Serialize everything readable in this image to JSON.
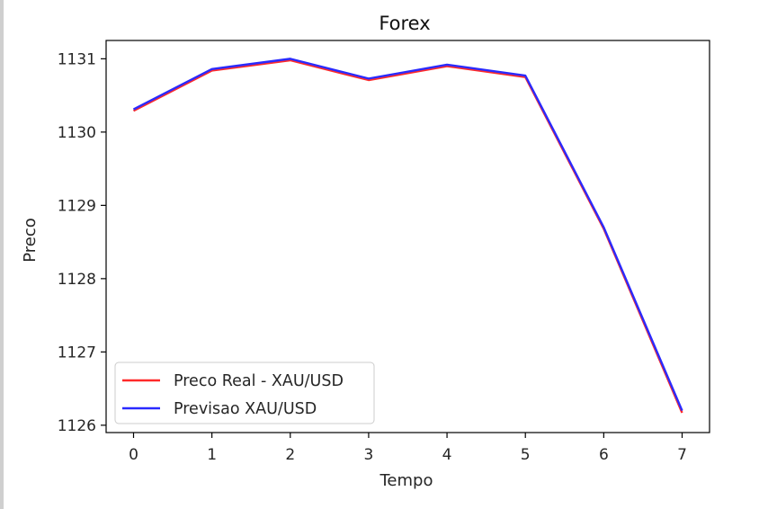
{
  "chart_data": {
    "type": "line",
    "title": "Forex",
    "xlabel": "Tempo",
    "ylabel": "Preco",
    "x": [
      0,
      1,
      2,
      3,
      4,
      5,
      6,
      7
    ],
    "x_ticks": [
      0,
      1,
      2,
      3,
      4,
      5,
      6,
      7
    ],
    "y_ticks": [
      1126,
      1127,
      1128,
      1129,
      1130,
      1131
    ],
    "xlim": [
      -0.35,
      7.35
    ],
    "ylim": [
      1125.9,
      1131.25
    ],
    "grid": false,
    "legend_position": "lower-left",
    "series": [
      {
        "name": "Preco Real - XAU/USD",
        "color": "#ff2a2a",
        "values": [
          1130.29,
          1130.84,
          1130.98,
          1130.71,
          1130.9,
          1130.75,
          1128.68,
          1126.17
        ]
      },
      {
        "name": "Previsao XAU/USD",
        "color": "#2a2aff",
        "values": [
          1130.31,
          1130.86,
          1131.0,
          1130.73,
          1130.92,
          1130.77,
          1128.7,
          1126.2
        ]
      }
    ]
  }
}
